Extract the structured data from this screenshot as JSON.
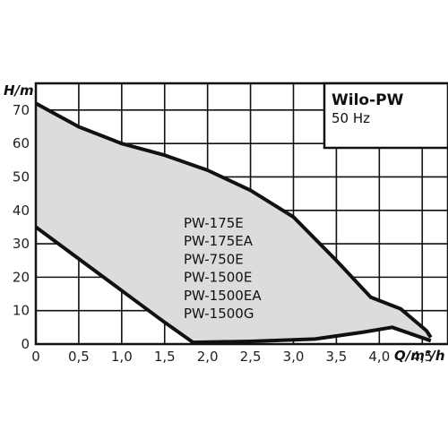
{
  "chart_data": {
    "type": "area",
    "title": "Wilo-PW",
    "subtitle": "50 Hz",
    "xlabel": "Q/m³/h",
    "ylabel": "H/m",
    "xlim": [
      0,
      4.8
    ],
    "ylim": [
      0,
      78
    ],
    "xticks": [
      "0",
      "0,5",
      "1,0",
      "1,5",
      "2,0",
      "2,5",
      "3,0",
      "3,5",
      "4,0",
      "4,5"
    ],
    "yticks": [
      "0",
      "10",
      "20",
      "30",
      "40",
      "50",
      "60",
      "70"
    ],
    "grid": true,
    "labels": [
      "PW-175E",
      "PW-175EA",
      "PW-750E",
      "PW-1500E",
      "PW-1500EA",
      "PW-1500G"
    ],
    "upper_curve": {
      "x": [
        0,
        0.5,
        1.0,
        1.5,
        2.0,
        2.5,
        3.0,
        3.5,
        3.9,
        4.25,
        4.55,
        4.6
      ],
      "y": [
        72,
        65,
        60,
        56.5,
        52,
        46,
        38,
        25,
        14,
        10.5,
        4,
        2
      ]
    },
    "lower_curve": {
      "x": [
        0,
        0.5,
        1.0,
        1.5,
        1.83,
        2.5,
        3.25,
        3.8,
        4.15,
        4.6
      ],
      "y": [
        35,
        25.5,
        16,
        6.5,
        0.5,
        0.8,
        1.5,
        3.5,
        5,
        1
      ]
    },
    "fill_color": "#dcdcdc",
    "line_color": "#111111"
  }
}
